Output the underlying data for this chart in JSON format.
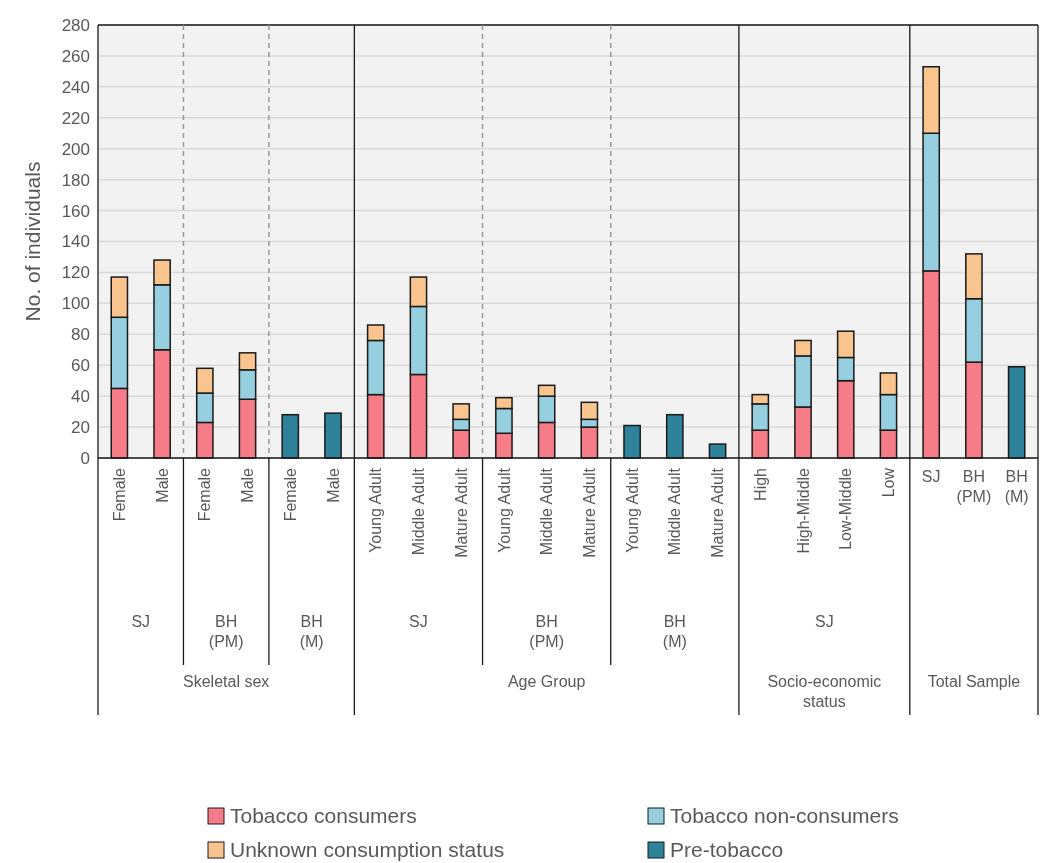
{
  "chart_data": {
    "type": "bar",
    "stacked": true,
    "ylabel": "No. of individuals",
    "categories": [
      "Female",
      "Male",
      "Female",
      "Male",
      "Female",
      "Male",
      "Young Adult",
      "Middle Adult",
      "Mature Adult",
      "Young Adult",
      "Middle Adult",
      "Mature Adult",
      "Young Adult",
      "Middle Adult",
      "Mature Adult",
      "High",
      "High-Middle",
      "Low-Middle",
      "Low",
      "SJ",
      "BH (PM)",
      "BH (M)"
    ],
    "series": [
      {
        "name": "Tobacco consumers",
        "color": "#f67c88",
        "values": [
          45,
          70,
          23,
          38,
          null,
          null,
          41,
          54,
          18,
          16,
          23,
          20,
          null,
          null,
          null,
          18,
          33,
          50,
          18,
          121,
          62,
          null
        ]
      },
      {
        "name": "Tobacco non-consumers",
        "color": "#96cfe0",
        "values": [
          46,
          42,
          19,
          19,
          null,
          null,
          35,
          44,
          7,
          16,
          17,
          5,
          null,
          null,
          null,
          17,
          33,
          15,
          23,
          89,
          41,
          null
        ]
      },
      {
        "name": "Unknown consumption status",
        "color": "#f9c48e",
        "values": [
          26,
          16,
          16,
          11,
          null,
          null,
          10,
          19,
          10,
          7,
          7,
          11,
          null,
          null,
          null,
          6,
          10,
          17,
          14,
          43,
          29,
          null
        ]
      },
      {
        "name": "Pre-tobacco",
        "color": "#2e829a",
        "values": [
          null,
          null,
          null,
          null,
          28,
          29,
          null,
          null,
          null,
          null,
          null,
          null,
          21,
          28,
          9,
          null,
          null,
          null,
          null,
          null,
          null,
          59
        ]
      }
    ],
    "ylim": [
      0,
      280
    ],
    "yticks": [
      0,
      20,
      40,
      60,
      80,
      100,
      120,
      140,
      160,
      180,
      200,
      220,
      240,
      260,
      280
    ],
    "grid": "y",
    "legend": "bottom",
    "annotations": [
      "SJ",
      "BH (PM)",
      "BH (M)",
      "SJ",
      "BH (PM)",
      "BH (M)",
      "SJ",
      "Skeletal sex",
      "Age Group",
      "Socio-economic status",
      "Total Sample"
    ]
  }
}
